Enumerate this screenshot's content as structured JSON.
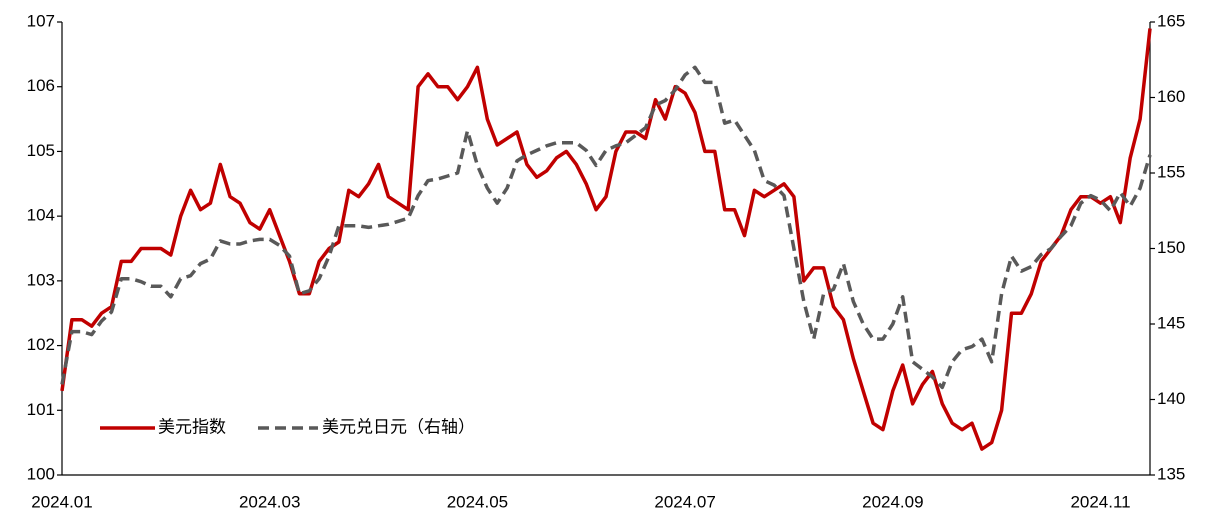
{
  "chart_data": {
    "type": "line",
    "categories": [
      "2024.01",
      null,
      null,
      null,
      null,
      null,
      null,
      null,
      null,
      null,
      null,
      null,
      null,
      null,
      null,
      null,
      null,
      null,
      null,
      null,
      null,
      "2024.03",
      null,
      null,
      null,
      null,
      null,
      null,
      null,
      null,
      null,
      null,
      null,
      null,
      null,
      null,
      null,
      null,
      null,
      null,
      null,
      null,
      "2024.05",
      null,
      null,
      null,
      null,
      null,
      null,
      null,
      null,
      null,
      null,
      null,
      null,
      null,
      null,
      null,
      null,
      null,
      null,
      null,
      null,
      "2024.07",
      null,
      null,
      null,
      null,
      null,
      null,
      null,
      null,
      null,
      null,
      null,
      null,
      null,
      null,
      null,
      null,
      null,
      null,
      null,
      null,
      "2024.09",
      null,
      null,
      null,
      null,
      null,
      null,
      null,
      null,
      null,
      null,
      null,
      null,
      null,
      null,
      null,
      null,
      null,
      null,
      null,
      null,
      "2024.11",
      null,
      null,
      null,
      null,
      null
    ],
    "series": [
      {
        "name": "美元指数",
        "color": "#c00000",
        "dash": false,
        "values": [
          101.3,
          102.4,
          102.4,
          102.3,
          102.5,
          102.6,
          103.3,
          103.3,
          103.5,
          103.5,
          103.5,
          103.4,
          104.0,
          104.4,
          104.1,
          104.2,
          104.8,
          104.3,
          104.2,
          103.9,
          103.8,
          104.1,
          103.7,
          103.3,
          102.8,
          102.8,
          103.3,
          103.5,
          103.6,
          104.4,
          104.3,
          104.5,
          104.8,
          104.3,
          104.2,
          104.1,
          106.0,
          106.2,
          106.0,
          106.0,
          105.8,
          106.0,
          106.3,
          105.5,
          105.1,
          105.2,
          105.3,
          104.8,
          104.6,
          104.7,
          104.9,
          105.0,
          104.8,
          104.5,
          104.1,
          104.3,
          105.0,
          105.3,
          105.3,
          105.2,
          105.8,
          105.5,
          106.0,
          105.9,
          105.6,
          105.0,
          105.0,
          104.1,
          104.1,
          103.7,
          104.4,
          104.3,
          104.4,
          104.5,
          104.3,
          103.0,
          103.2,
          103.2,
          102.6,
          102.4,
          101.8,
          101.3,
          100.8,
          100.7,
          101.3,
          101.7,
          101.1,
          101.4,
          101.6,
          101.1,
          100.8,
          100.7,
          100.8,
          100.4,
          100.5,
          101.0,
          102.5,
          102.5,
          102.8,
          103.3,
          103.5,
          103.7,
          104.1,
          104.3,
          104.3,
          104.2,
          104.3,
          103.9,
          104.9,
          105.5,
          106.9
        ]
      },
      {
        "name": "美元兑日元（右轴）",
        "color": "#595959",
        "dash": true,
        "axis": "y2",
        "values": [
          141,
          144.5,
          144.5,
          144.3,
          145.2,
          145.8,
          148.0,
          148.0,
          147.8,
          147.5,
          147.5,
          146.8,
          148.0,
          148.2,
          149.0,
          149.3,
          150.5,
          150.3,
          150.3,
          150.5,
          150.6,
          150.6,
          150.2,
          149.5,
          147.0,
          147.2,
          148.0,
          149.5,
          151.5,
          151.5,
          151.5,
          151.4,
          151.5,
          151.6,
          151.8,
          152.0,
          153.5,
          154.5,
          154.6,
          154.8,
          155.0,
          157.8,
          155.5,
          154.0,
          153.0,
          154.0,
          155.8,
          156.2,
          156.5,
          156.8,
          157.0,
          157.0,
          157.0,
          156.5,
          155.5,
          156.5,
          156.8,
          157.0,
          157.5,
          158.0,
          159.5,
          159.8,
          160.5,
          161.5,
          162.0,
          161.0,
          161.0,
          158.3,
          158.5,
          157.5,
          156.5,
          154.5,
          154.2,
          153.5,
          150.0,
          146.5,
          144.0,
          147.0,
          147.3,
          149.0,
          146.5,
          145.0,
          144.0,
          144.0,
          145.0,
          146.8,
          142.5,
          142.0,
          141.5,
          140.8,
          142.5,
          143.3,
          143.5,
          144.0,
          142.5,
          147.0,
          149.5,
          148.5,
          148.8,
          149.6,
          150.0,
          150.8,
          151.5,
          153.0,
          153.5,
          153.2,
          152.5,
          153.7,
          152.8,
          154.0,
          156.2
        ]
      }
    ],
    "ylim": [
      100,
      107
    ],
    "yticks": [
      100,
      101,
      102,
      103,
      104,
      105,
      106,
      107
    ],
    "y2lim": [
      135,
      165
    ],
    "y2ticks": [
      135,
      140,
      145,
      150,
      155,
      160,
      165
    ],
    "grid": false,
    "legend": "lower left"
  }
}
